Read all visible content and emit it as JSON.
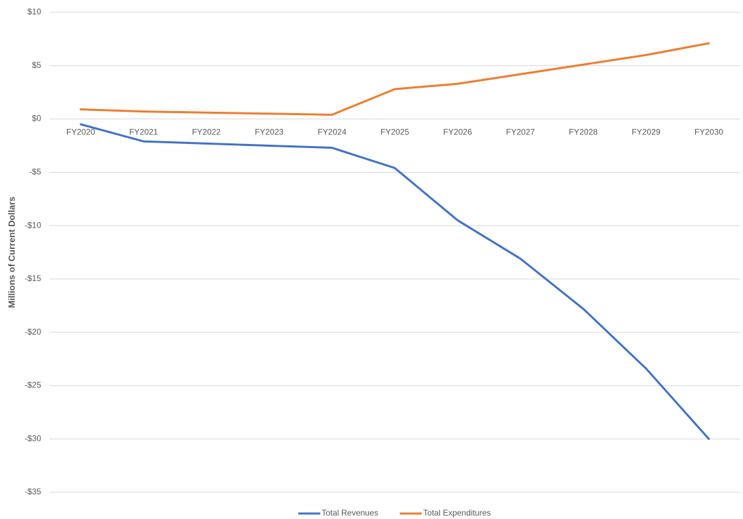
{
  "chart_data": {
    "type": "line",
    "y_label": "Millions of Current Dollars",
    "categories": [
      "FY2020",
      "FY2021",
      "FY2022",
      "FY2023",
      "FY2024",
      "FY2025",
      "FY2026",
      "FY2027",
      "FY2028",
      "FY2029",
      "FY2030"
    ],
    "series": [
      {
        "name": "Total Revenues",
        "color": "#4472c4",
        "values": [
          -0.5,
          -2.1,
          -2.3,
          -2.5,
          -2.7,
          -4.6,
          -9.5,
          -13.1,
          -17.8,
          -23.4,
          -30.0
        ]
      },
      {
        "name": "Total Expenditures",
        "color": "#ed7d31",
        "values": [
          0.9,
          0.7,
          0.6,
          0.5,
          0.4,
          2.8,
          3.3,
          4.2,
          5.1,
          6.0,
          7.1
        ]
      }
    ],
    "ylim": [
      -35,
      10
    ],
    "yticks": [
      {
        "value": -35,
        "label": "-$35"
      },
      {
        "value": -30,
        "label": "-$30"
      },
      {
        "value": -25,
        "label": "-$25"
      },
      {
        "value": -20,
        "label": "-$20"
      },
      {
        "value": -15,
        "label": "-$15"
      },
      {
        "value": -10,
        "label": "-$10"
      },
      {
        "value": -5,
        "label": "-$5"
      },
      {
        "value": 0,
        "label": "$0"
      },
      {
        "value": 5,
        "label": "$5"
      },
      {
        "value": 10,
        "label": "$10"
      }
    ],
    "grid": true,
    "legend": "bottom"
  }
}
